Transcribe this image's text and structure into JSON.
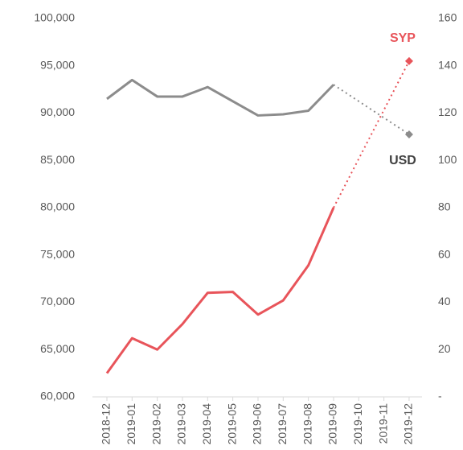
{
  "chart_data": {
    "type": "line",
    "categories": [
      "2018-12",
      "2019-01",
      "2019-02",
      "2019-03",
      "2019-04",
      "2019-05",
      "2019-06",
      "2019-07",
      "2019-08",
      "2019-09",
      "2019-10",
      "2019-11",
      "2019-12"
    ],
    "series": [
      {
        "name": "SYP",
        "color": "#e8545a",
        "values": [
          62500,
          66200,
          65000,
          67700,
          71000,
          71100,
          68700,
          70200,
          73900,
          80000,
          null,
          null,
          95500
        ]
      },
      {
        "name": "USD",
        "color": "#8c8c8c",
        "axis": "y2",
        "values": [
          126,
          134,
          127,
          127,
          131,
          125,
          119,
          119.5,
          121,
          132,
          null,
          null,
          111
        ]
      }
    ],
    "ylim": [
      60000,
      100000
    ],
    "yticks": [
      {
        "value": 60000,
        "label": "60,000"
      },
      {
        "value": 65000,
        "label": "65,000"
      },
      {
        "value": 70000,
        "label": "70,000"
      },
      {
        "value": 75000,
        "label": "75,000"
      },
      {
        "value": 80000,
        "label": "80,000"
      },
      {
        "value": 85000,
        "label": "85,000"
      },
      {
        "value": 90000,
        "label": "90,000"
      },
      {
        "value": 95000,
        "label": "95,000"
      },
      {
        "value": 100000,
        "label": "100,000"
      }
    ],
    "y2lim": [
      0,
      160
    ],
    "y2ticks": [
      {
        "value": 0,
        "label": "-"
      },
      20,
      40,
      60,
      80,
      100,
      120,
      140,
      160
    ]
  }
}
